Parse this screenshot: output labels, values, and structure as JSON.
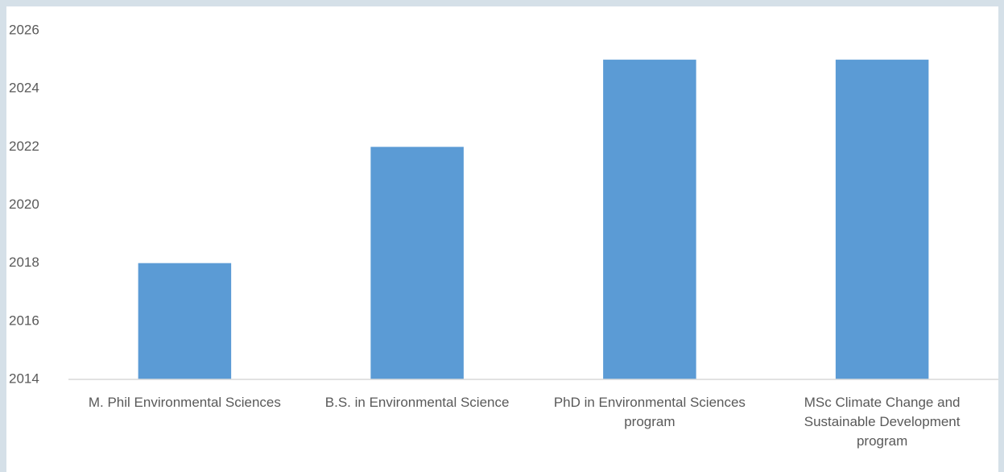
{
  "chart_data": {
    "type": "bar",
    "categories": [
      "M. Phil Environmental Sciences",
      "B.S. in Environmental Science",
      "PhD in Environmental Sciences program",
      "MSc Climate Change and Sustainable Development program"
    ],
    "values": [
      2018,
      2022,
      2025,
      2025
    ],
    "color": "#5b9bd5",
    "ylim": [
      2014,
      2026
    ],
    "yticks": [
      2014,
      2016,
      2018,
      2020,
      2022,
      2024,
      2026
    ],
    "grid": false
  }
}
